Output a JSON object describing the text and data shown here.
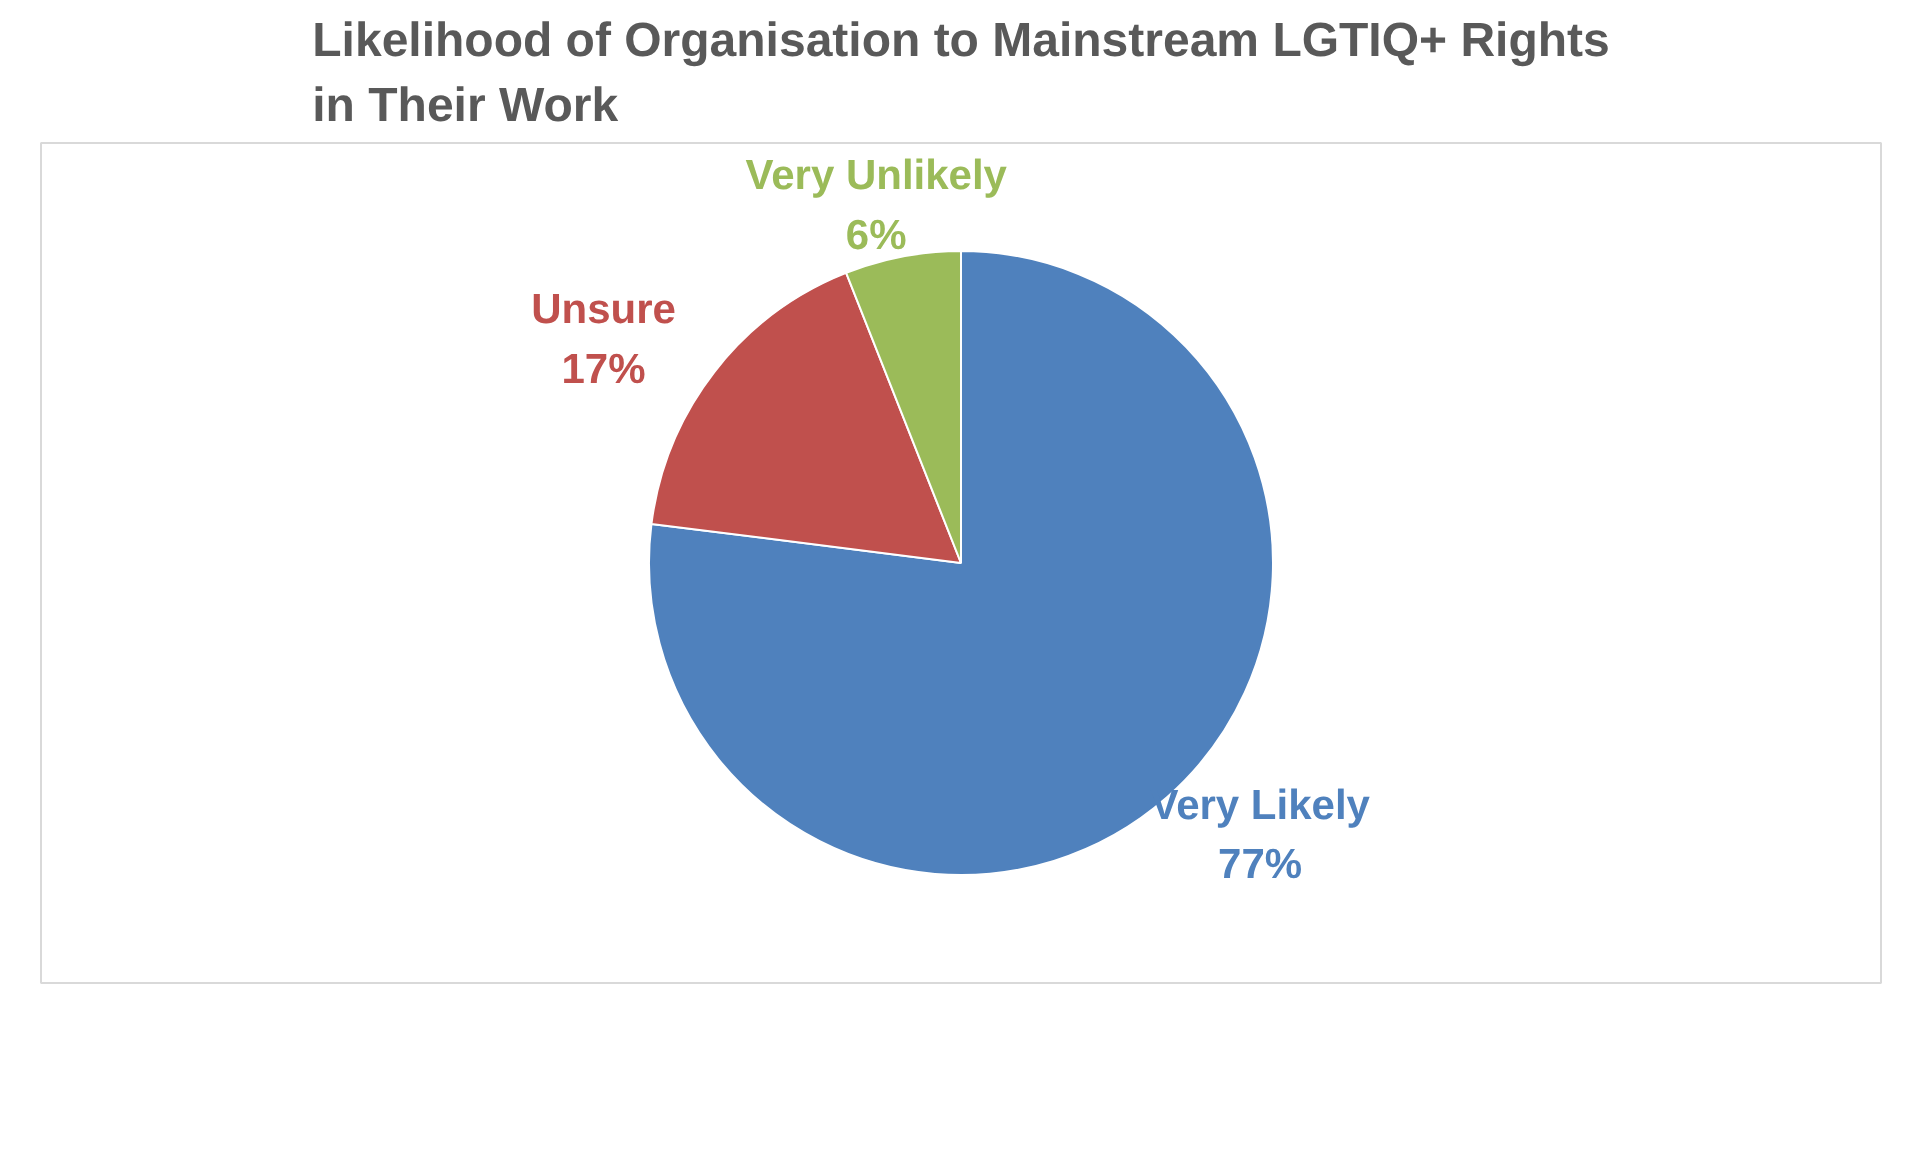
{
  "chart_data": {
    "type": "pie",
    "title": "Likelihood of Organisation to Mainstream LGTIQ+ Rights in Their Work",
    "categories": [
      "Very Likely",
      "Unsure",
      "Very Unlikely"
    ],
    "values": [
      77,
      17,
      6
    ],
    "colors": [
      "#4f81bd",
      "#c0504d",
      "#9bbb59"
    ],
    "value_labels": [
      "77%",
      "17%",
      "6%"
    ]
  }
}
